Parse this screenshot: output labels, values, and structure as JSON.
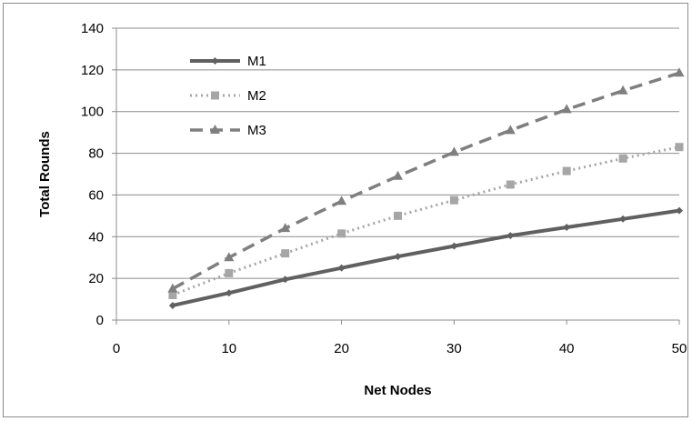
{
  "chart_data": {
    "type": "line",
    "xlabel": "Net Nodes",
    "ylabel": "Total Rounds",
    "xlim": [
      0,
      50
    ],
    "ylim": [
      0,
      140
    ],
    "x_ticks": [
      0,
      10,
      20,
      30,
      40,
      50
    ],
    "y_ticks": [
      0,
      20,
      40,
      60,
      80,
      100,
      120,
      140
    ],
    "grid": "horizontal",
    "legend_position": "top-left",
    "x": [
      5,
      10,
      15,
      20,
      25,
      30,
      35,
      40,
      45,
      50
    ],
    "series": [
      {
        "name": "M1",
        "marker": "diamond",
        "style": "solid",
        "color": "#606060",
        "values": [
          7,
          13,
          19.5,
          25,
          30.5,
          35.5,
          40.5,
          44.5,
          48.5,
          52.5
        ]
      },
      {
        "name": "M2",
        "marker": "square",
        "style": "dotted",
        "color": "#a6a6a6",
        "values": [
          12,
          22.5,
          32,
          41.5,
          50,
          57.5,
          65,
          71.5,
          77.5,
          83
        ]
      },
      {
        "name": "M3",
        "marker": "triangle",
        "style": "dashed",
        "color": "#7f7f7f",
        "values": [
          15,
          30,
          44,
          57,
          69,
          80.5,
          91,
          101,
          110,
          118.5
        ]
      }
    ]
  }
}
